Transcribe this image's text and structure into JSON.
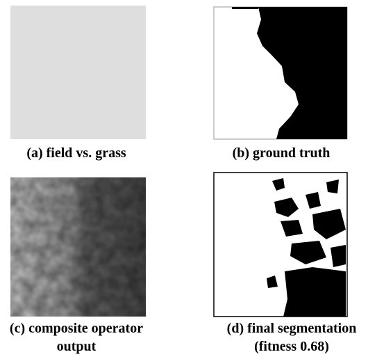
{
  "panels": [
    {
      "caption": [
        "(a) field vs. grass"
      ]
    },
    {
      "caption": [
        "(b) ground truth"
      ]
    },
    {
      "caption": [
        "(c) composite operator",
        "output"
      ]
    },
    {
      "caption": [
        "(d) final segmentation",
        "(fitness 0.68)"
      ]
    }
  ]
}
